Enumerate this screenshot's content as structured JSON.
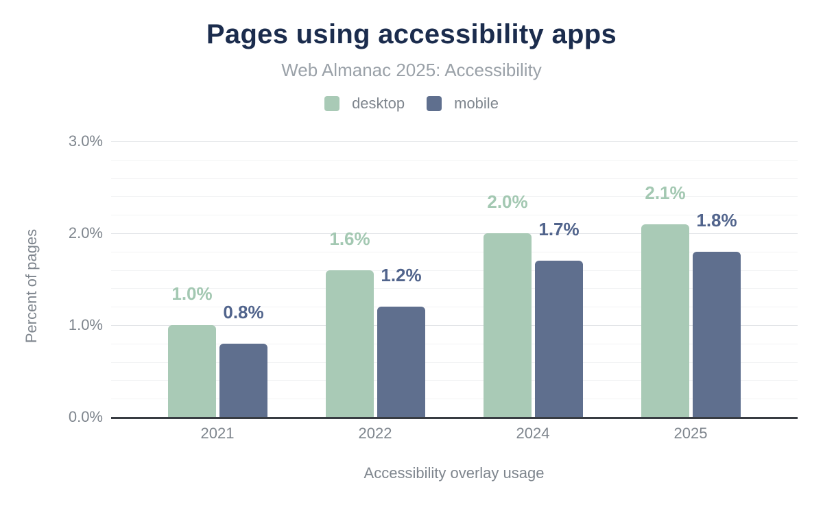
{
  "chart_data": {
    "type": "bar",
    "title": "Pages using accessibility apps",
    "subtitle": "Web Almanac 2025: Accessibility",
    "xlabel": "Accessibility overlay usage",
    "ylabel": "Percent of pages",
    "categories": [
      "2021",
      "2022",
      "2024",
      "2025"
    ],
    "series": [
      {
        "name": "desktop",
        "color": "#a9cab6",
        "label_color": "#a3c8b2",
        "values": [
          1.0,
          1.6,
          2.0,
          2.1
        ],
        "labels": [
          "1.0%",
          "1.6%",
          "2.0%",
          "2.1%"
        ]
      },
      {
        "name": "mobile",
        "color": "#5f6f8e",
        "label_color": "#51648c",
        "values": [
          0.8,
          1.2,
          1.7,
          1.8
        ],
        "labels": [
          "0.8%",
          "1.2%",
          "1.7%",
          "1.8%"
        ]
      }
    ],
    "ylim": [
      0,
      3
    ],
    "yticks": [
      {
        "value": 0,
        "label": "0.0%"
      },
      {
        "value": 1,
        "label": "1.0%"
      },
      {
        "value": 2,
        "label": "2.0%"
      },
      {
        "value": 3,
        "label": "3.0%"
      }
    ],
    "grid": {
      "minor_step": 0.2,
      "major_step": 1.0,
      "minor_color": "#f2f3f4",
      "major_color": "#e3e5e8",
      "axis_line_color": "#383c42"
    },
    "legend_position": "top",
    "colors": {
      "title": "#1b2c4d",
      "subtitle": "#9aa1a8",
      "axis_text": "#7e858d",
      "background": "#ffffff"
    }
  }
}
